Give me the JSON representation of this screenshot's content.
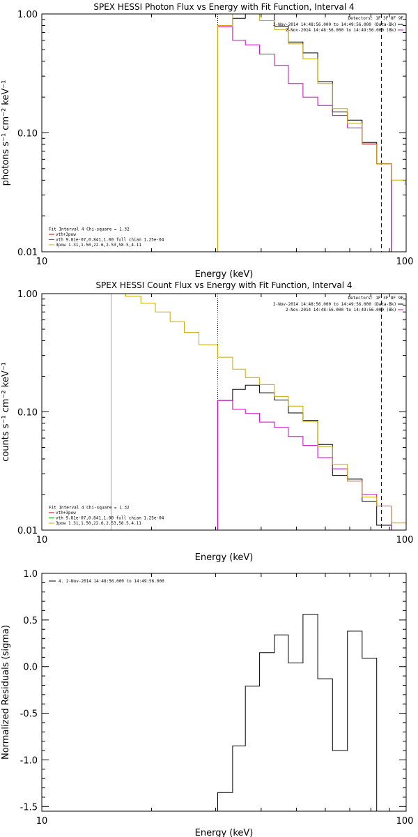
{
  "chart_data": [
    {
      "type": "line",
      "title": "SPEX HESSI Photon Flux vs Energy with Fit Function, Interval 4",
      "xlabel": "Energy (keV)",
      "ylabel": "photons s⁻¹ cm⁻² keV⁻¹",
      "xscale": "log",
      "yscale": "log",
      "xlim": [
        10,
        100
      ],
      "ylim": [
        0.01,
        1.0
      ],
      "x_ticks": [
        "10",
        "100"
      ],
      "y_ticks": [
        "0.01",
        "0.10",
        "1.00"
      ],
      "legend_top": {
        "detectors": "Detectors: 1F 3F 8F 9F",
        "entries": [
          {
            "text": "2-Nov-2014 14:48:56.000 to 14:49:56.000 (Data-Bk)",
            "color": "#000000"
          },
          {
            "text": "2-Nov-2014 14:48:56.000 to 14:49:56.000 (Bk)",
            "color": "#cc00cc"
          }
        ]
      },
      "legend_bottom": [
        {
          "text": "Fit Interval 4   Chi-square = 1.32",
          "color": ""
        },
        {
          "text": "vth+3pow",
          "color": "#cc0000"
        },
        {
          "text": "vth 9.81e-07,0.841,1.00  full chian 1.25e-04",
          "color": "#00aa00"
        },
        {
          "text": "3pow 1.31,1.50,22.6,2.53,58.5,4.11",
          "color": "#ccaa00"
        }
      ],
      "vlines": [
        {
          "x": 30.4,
          "style": "dotted",
          "color": "#000000"
        },
        {
          "x": 85.5,
          "style": "dashed",
          "color": "#000000"
        }
      ],
      "series": [
        {
          "color": "#000000",
          "edges": [
            30.4,
            33.4,
            36.2,
            39.6,
            43.5,
            47.5,
            52.1,
            57.2,
            62.8,
            69.0,
            75.7,
            83.0,
            91.1
          ],
          "values": [
            0.8,
            0.92,
            1.05,
            1.0,
            0.79,
            0.58,
            0.47,
            0.27,
            0.15,
            0.128,
            0.083,
            0.055
          ]
        },
        {
          "color": "#cc00cc",
          "edges": [
            30.4,
            33.4,
            36.2,
            39.6,
            43.5,
            47.5,
            52.1,
            57.2,
            62.8,
            69.0,
            75.7,
            83.0,
            91.1
          ],
          "values": [
            0.78,
            0.6,
            0.55,
            0.46,
            0.37,
            0.26,
            0.2,
            0.17,
            0.14,
            0.11,
            0.081,
            0.055
          ]
        },
        {
          "color": "#ccaa00",
          "edges": [
            30.4,
            33.4,
            36.2,
            39.6,
            43.5,
            47.5,
            52.1,
            57.2,
            62.8,
            69.0,
            75.7,
            83.0,
            91.1,
            99.3,
            100
          ],
          "values": [
            0.8,
            1.0,
            1.0,
            0.88,
            0.74,
            0.56,
            0.42,
            0.26,
            0.16,
            0.12,
            0.08,
            0.055,
            0.04,
            0.037
          ]
        }
      ]
    },
    {
      "type": "line",
      "title": "SPEX HESSI Count Flux vs Energy with Fit Function, Interval 4",
      "xlabel": "Energy (keV)",
      "ylabel": "counts s⁻¹ cm⁻² keV⁻¹",
      "xscale": "log",
      "yscale": "log",
      "xlim": [
        10,
        100
      ],
      "ylim": [
        0.01,
        1.0
      ],
      "x_ticks": [
        "10",
        "100"
      ],
      "y_ticks": [
        "0.01",
        "0.10",
        "1.00"
      ],
      "legend_top": {
        "detectors": "Detectors: 1F 3F 8F 9F",
        "entries": [
          {
            "text": "2-Nov-2014 14:48:56.000 to 14:49:56.000 (Data-Bk)",
            "color": "#000000"
          },
          {
            "text": "2-Nov-2014 14:48:56.000 to 14:49:56.000 (Bk)",
            "color": "#cc00cc"
          }
        ]
      },
      "legend_bottom": [
        {
          "text": "Fit Interval 4   Chi-square = 1.32",
          "color": ""
        },
        {
          "text": "vth+3pow",
          "color": "#cc0000"
        },
        {
          "text": "vth 9.81e-07,0.841,1.00  full chian 1.25e-04",
          "color": "#00aa00"
        },
        {
          "text": "3pow 1.31,1.50,22.6,2.53,58.5,4.11",
          "color": "#ccaa00"
        }
      ],
      "vlines": [
        {
          "x": 30.4,
          "style": "dotted",
          "color": "#000000"
        },
        {
          "x": 85.5,
          "style": "dashed",
          "color": "#000000"
        }
      ],
      "series": [
        {
          "color": "#000000",
          "edges": [
            30.4,
            33.4,
            36.2,
            39.6,
            43.5,
            47.5,
            52.1,
            57.2,
            62.8,
            69.0,
            75.7,
            83.0,
            91.1
          ],
          "values": [
            0.125,
            0.155,
            0.168,
            0.145,
            0.126,
            0.098,
            0.085,
            0.053,
            0.029,
            0.027,
            0.0175,
            0.011
          ]
        },
        {
          "color": "#cc00cc",
          "edges": [
            30.4,
            33.4,
            36.2,
            39.6,
            43.5,
            47.5,
            52.1,
            57.2,
            62.8,
            69.0,
            75.7,
            83.0,
            91.1
          ],
          "values": [
            0.125,
            0.105,
            0.097,
            0.082,
            0.074,
            0.062,
            0.052,
            0.041,
            0.033,
            0.026,
            0.02,
            0.016
          ]
        },
        {
          "color": "#ccaa00",
          "edges": [
            15.5,
            17.0,
            18.7,
            20.5,
            22.5,
            24.6,
            27.0,
            30.4,
            33.4,
            36.2,
            39.6,
            43.5,
            47.5,
            52.1,
            57.2,
            62.8,
            69.0,
            75.7,
            83.0,
            91.1,
            100
          ],
          "values": [
            1.0,
            0.95,
            0.83,
            0.7,
            0.58,
            0.47,
            0.37,
            0.29,
            0.23,
            0.195,
            0.17,
            0.135,
            0.112,
            0.083,
            0.051,
            0.036,
            0.026,
            0.019,
            0.016,
            0.0115
          ]
        }
      ]
    },
    {
      "type": "line",
      "title": "",
      "xlabel": "Energy (keV)",
      "ylabel": "Normalized Residuals (sigma)",
      "xscale": "log",
      "yscale": "linear",
      "xlim": [
        10,
        100
      ],
      "ylim": [
        -1.55,
        1.0
      ],
      "x_ticks": [
        "10",
        "100"
      ],
      "y_ticks": [
        "-1.5",
        "-1.0",
        "-0.5",
        "0.0",
        "0.5",
        "1.0"
      ],
      "legend": [
        {
          "text": "4.  2-Nov-2014 14:48:56.000 to 14:49:56.000",
          "color": "#000000"
        }
      ],
      "series": [
        {
          "color": "#000000",
          "edges": [
            30.4,
            33.4,
            36.2,
            39.6,
            43.5,
            47.5,
            52.1,
            57.2,
            62.8,
            69.0,
            75.7,
            83.0,
            91.1
          ],
          "values": [
            -1.35,
            -0.85,
            -0.21,
            0.15,
            0.34,
            0.04,
            0.56,
            -0.13,
            -0.9,
            0.38,
            0.09,
            -1.55
          ]
        }
      ]
    }
  ]
}
